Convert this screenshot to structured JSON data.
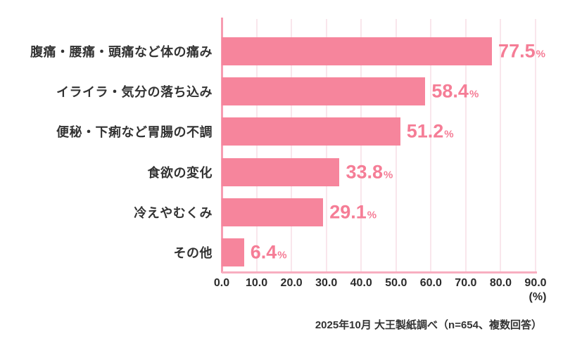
{
  "chart_data": {
    "type": "bar",
    "orientation": "horizontal",
    "title": "",
    "categories": [
      "腹痛・腰痛・頭痛など体の痛み",
      "イライラ・気分の落ち込み",
      "便秘・下痢など胃腸の不調",
      "食欲の変化",
      "冷えやむくみ",
      "その他"
    ],
    "values": [
      77.5,
      58.4,
      51.2,
      33.8,
      29.1,
      6.4
    ],
    "value_suffix": "%",
    "xlim": [
      0,
      90
    ],
    "x_ticks": [
      "0.0",
      "10.0",
      "20.0",
      "30.0",
      "40.0",
      "50.0",
      "60.0",
      "70.0",
      "80.0",
      "90.0"
    ],
    "x_unit_label": "(%)",
    "grid": true,
    "legend": "none",
    "source_note": "2025年10月 大王製紙調べ（n=654、複数回答）",
    "colors": {
      "bar": "#f6859c",
      "value_label": "#f57d96",
      "grid": "#f9e6ec",
      "axis": "#f79cb1",
      "axis_bottom": "#f8aec0",
      "label_text": "#333333",
      "tick_text": "#2b2b2b",
      "background": "#ffffff"
    }
  }
}
